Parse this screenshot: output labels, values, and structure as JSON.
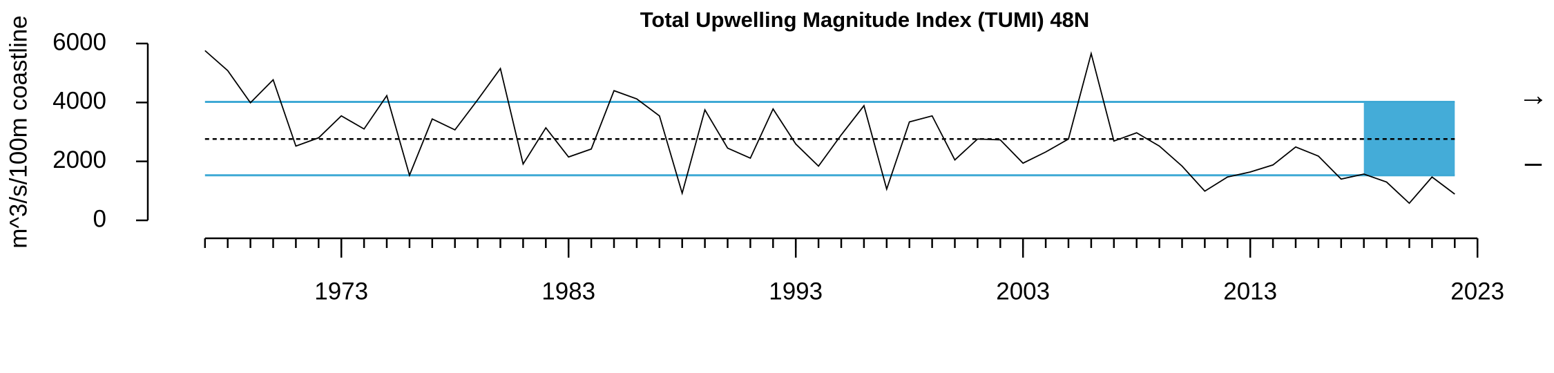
{
  "chart_data": {
    "type": "line",
    "title": "Total Upwelling Magnitude Index (TUMI) 48N",
    "y_label": "m^3/s/100m coastline",
    "x": [
      1967,
      1968,
      1969,
      1970,
      1971,
      1972,
      1973,
      1974,
      1975,
      1976,
      1977,
      1978,
      1979,
      1980,
      1981,
      1982,
      1983,
      1984,
      1985,
      1986,
      1987,
      1988,
      1989,
      1990,
      1991,
      1992,
      1993,
      1994,
      1995,
      1996,
      1997,
      1998,
      1999,
      2000,
      2001,
      2002,
      2003,
      2004,
      2005,
      2006,
      2007,
      2008,
      2009,
      2010,
      2011,
      2012,
      2013,
      2014,
      2015,
      2016,
      2017,
      2018,
      2019,
      2020,
      2021,
      2022
    ],
    "series": [
      {
        "name": "TUMI",
        "color": "#000000",
        "values": [
          5760,
          5080,
          3990,
          4770,
          2520,
          2800,
          3545,
          3100,
          4230,
          1530,
          3440,
          3070,
          4090,
          5150,
          1910,
          3140,
          2150,
          2420,
          4400,
          4120,
          3545,
          920,
          3750,
          2450,
          2110,
          3780,
          2590,
          1840,
          2900,
          3890,
          1060,
          3340,
          3545,
          2050,
          2760,
          2730,
          1940,
          2320,
          2760,
          5660,
          2690,
          2970,
          2520,
          1840,
          990,
          1470,
          1640,
          1880,
          2490,
          2180,
          1400,
          1570,
          1300,
          580,
          1470,
          890
        ]
      }
    ],
    "mean": 2760,
    "sd_upper": 4020,
    "sd_lower": 1530,
    "ref_color": "#3fa9d5",
    "shade_color": "#44acd8",
    "shade_x": [
      2018,
      2022
    ],
    "trend_symbol": "→",
    "mean_symbol": "–",
    "xlim": [
      1965,
      2025
    ],
    "ylim": [
      0,
      6000
    ],
    "xticks": [
      1973,
      1983,
      1993,
      2003,
      2013,
      2023
    ],
    "xticks_minor": [
      1967,
      1968,
      1969,
      1970,
      1971,
      1972,
      1973,
      1974,
      1975,
      1976,
      1977,
      1978,
      1979,
      1980,
      1981,
      1982,
      1983,
      1984,
      1985,
      1986,
      1987,
      1988,
      1989,
      1990,
      1991,
      1992,
      1993,
      1994,
      1995,
      1996,
      1997,
      1998,
      1999,
      2000,
      2001,
      2002,
      2003,
      2004,
      2005,
      2006,
      2007,
      2008,
      2009,
      2010,
      2011,
      2012,
      2013,
      2014,
      2015,
      2016,
      2017,
      2018,
      2019,
      2020,
      2021,
      2022,
      2023
    ],
    "yticks": [
      0,
      2000,
      4000,
      6000
    ]
  }
}
